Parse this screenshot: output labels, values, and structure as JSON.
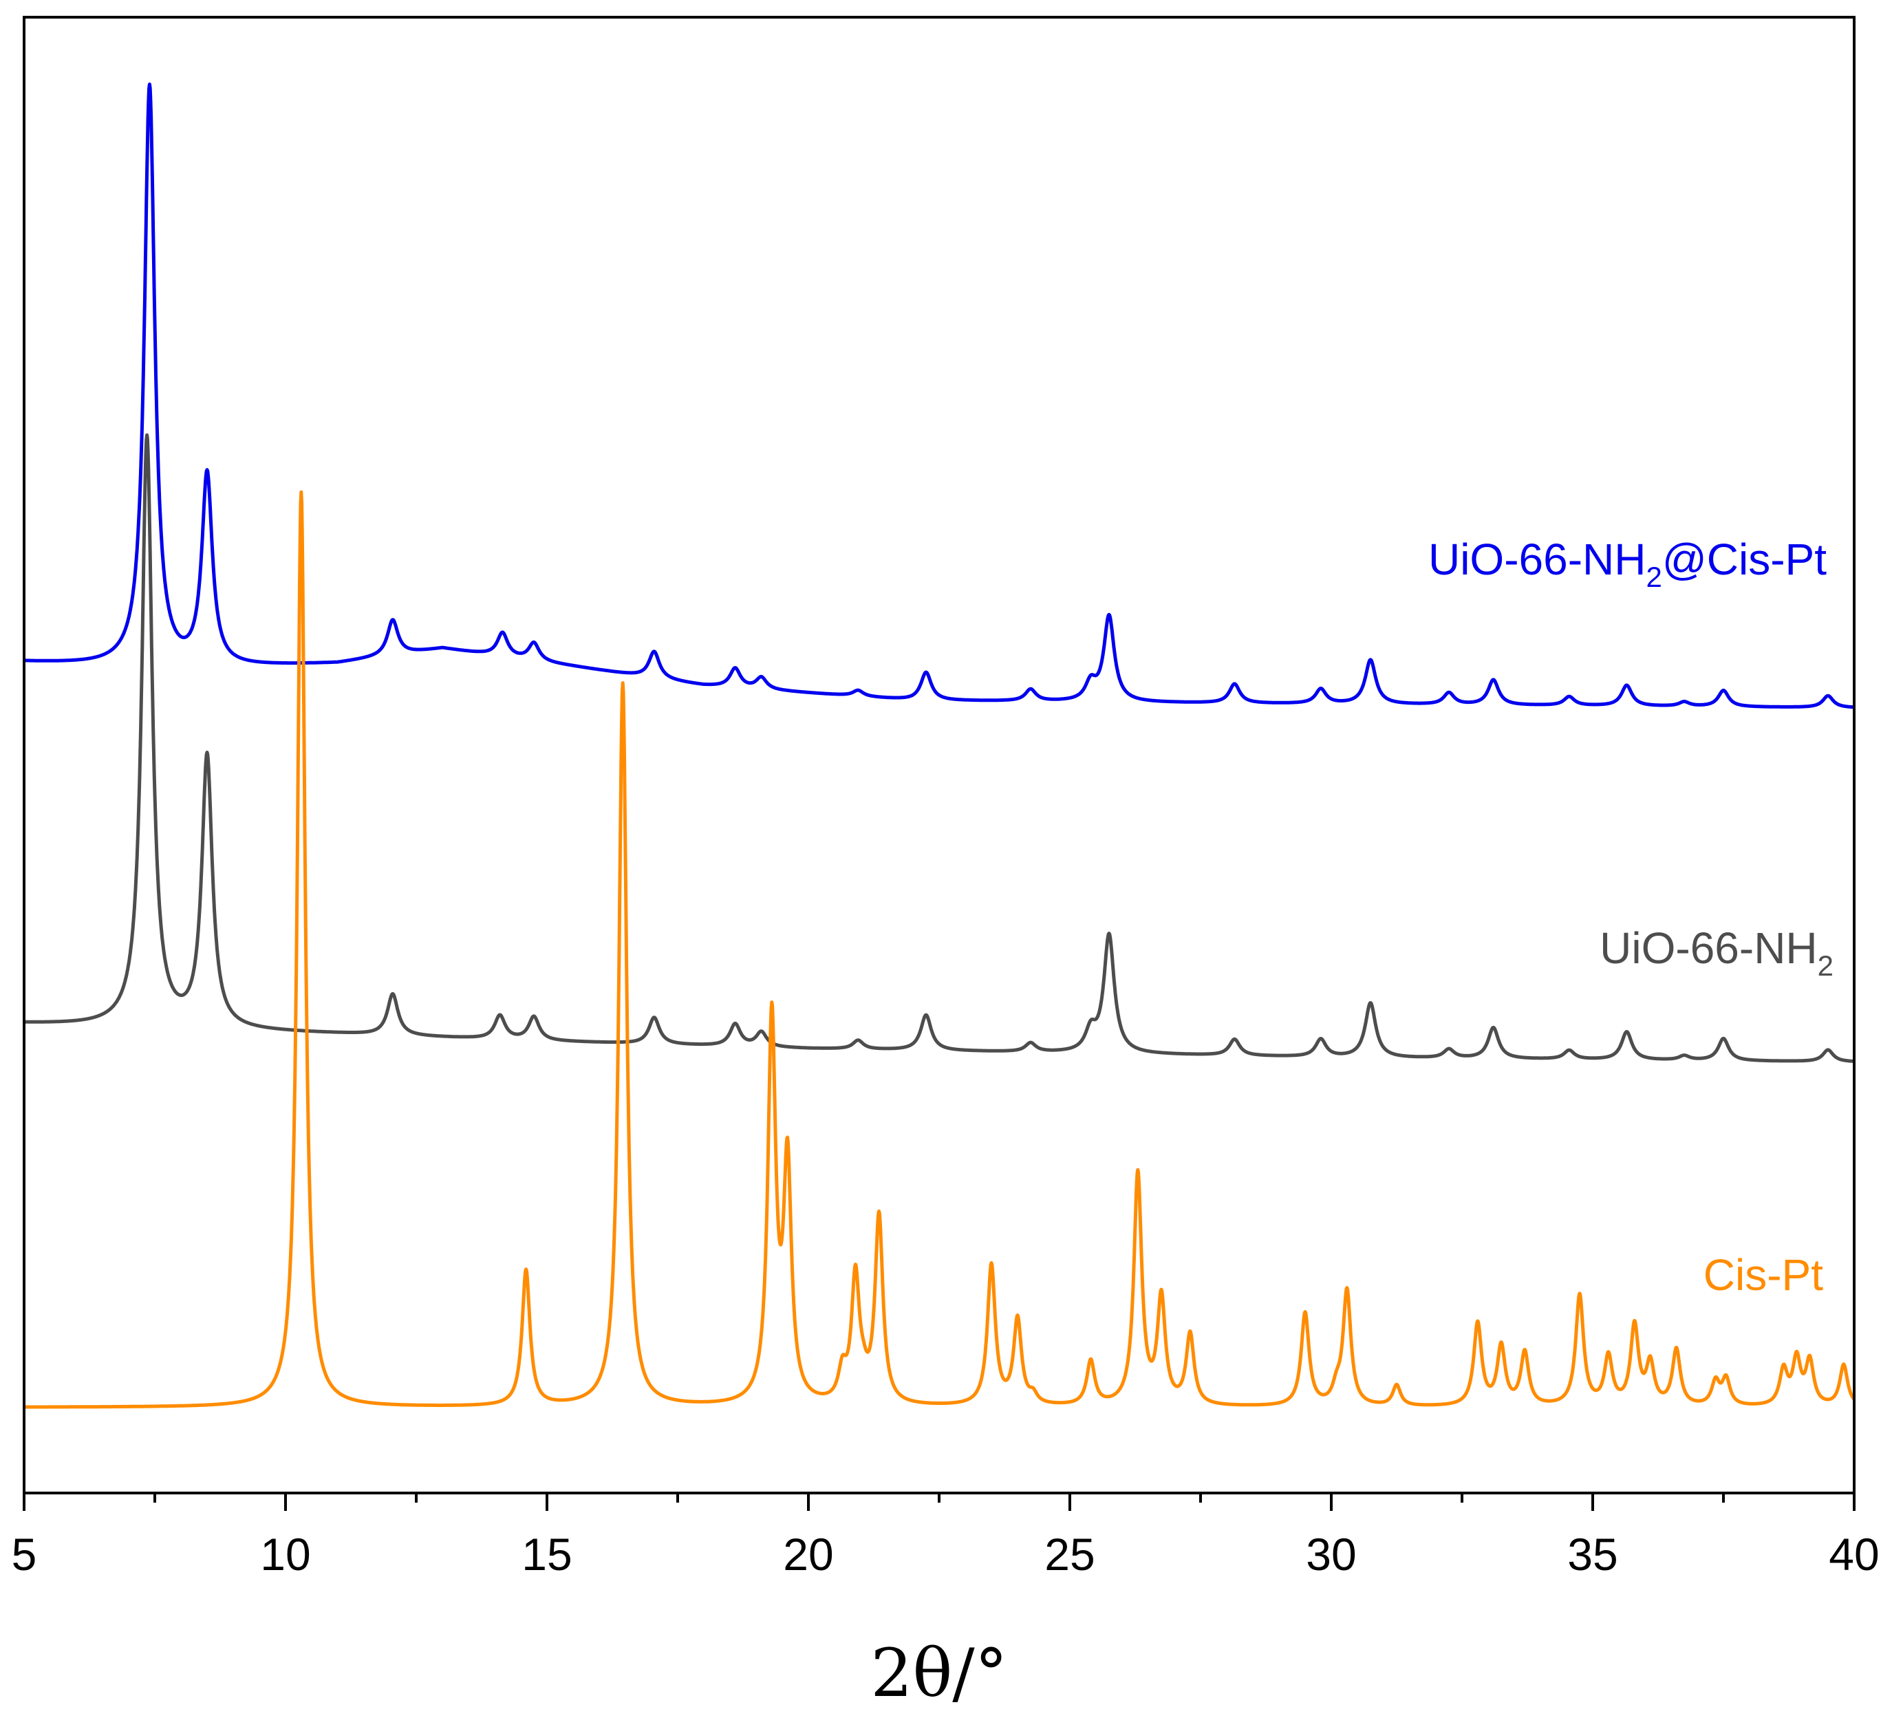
{
  "chart_data": {
    "type": "line",
    "title": "",
    "xlabel": "2θ/°",
    "ylabel": "",
    "xlim": [
      5,
      40
    ],
    "ylim": [
      0,
      1.0
    ],
    "x_ticks": [
      5,
      10,
      15,
      20,
      25,
      30,
      35,
      40
    ],
    "x_minor_step": 2.5,
    "y_ticks_visible": false,
    "grid": false,
    "legend": "inline labels beside each trace",
    "series": [
      {
        "label_main": "UiO-66-NH",
        "label_sub": "2",
        "label_tail": "@Cis-Pt",
        "color": "#0000ee",
        "baseline": [
          [
            5,
            0.563
          ],
          [
            8,
            0.558
          ],
          [
            11,
            0.562
          ],
          [
            13,
            0.572
          ],
          [
            15.5,
            0.56
          ],
          [
            18,
            0.547
          ],
          [
            22,
            0.537
          ],
          [
            28,
            0.535
          ],
          [
            40,
            0.532
          ]
        ],
        "width_scale": 0.12,
        "peaks": [
          [
            7.4,
            0.394
          ],
          [
            8.5,
            0.13
          ],
          [
            12.05,
            0.024
          ],
          [
            14.15,
            0.016
          ],
          [
            14.75,
            0.012
          ],
          [
            17.05,
            0.018
          ],
          [
            18.6,
            0.013
          ],
          [
            19.1,
            0.008
          ],
          [
            20.95,
            0.004
          ],
          [
            22.25,
            0.019
          ],
          [
            24.25,
            0.008
          ],
          [
            25.4,
            0.012
          ],
          [
            25.75,
            0.058
          ],
          [
            28.15,
            0.013
          ],
          [
            29.8,
            0.01
          ],
          [
            30.75,
            0.03
          ],
          [
            32.25,
            0.008
          ],
          [
            33.1,
            0.017
          ],
          [
            34.55,
            0.006
          ],
          [
            35.65,
            0.014
          ],
          [
            36.75,
            0.003
          ],
          [
            37.5,
            0.011
          ],
          [
            39.5,
            0.008
          ]
        ]
      },
      {
        "label_main": "UiO-66-NH",
        "label_sub": "2",
        "label_tail": "",
        "color": "#4d4d4d",
        "baseline": [
          [
            5,
            0.318
          ],
          [
            8,
            0.314
          ],
          [
            11,
            0.311
          ],
          [
            15,
            0.306
          ],
          [
            20,
            0.301
          ],
          [
            25,
            0.298
          ],
          [
            30,
            0.295
          ],
          [
            40,
            0.292
          ]
        ],
        "width_scale": 0.12,
        "peaks": [
          [
            7.35,
            0.4
          ],
          [
            8.5,
            0.184
          ],
          [
            12.05,
            0.028
          ],
          [
            14.1,
            0.016
          ],
          [
            14.75,
            0.016
          ],
          [
            17.05,
            0.018
          ],
          [
            18.6,
            0.015
          ],
          [
            19.1,
            0.01
          ],
          [
            20.95,
            0.006
          ],
          [
            22.25,
            0.024
          ],
          [
            24.25,
            0.006
          ],
          [
            25.4,
            0.014
          ],
          [
            25.75,
            0.08
          ],
          [
            28.15,
            0.011
          ],
          [
            29.8,
            0.012
          ],
          [
            30.75,
            0.037
          ],
          [
            32.25,
            0.006
          ],
          [
            33.1,
            0.021
          ],
          [
            34.55,
            0.006
          ],
          [
            35.65,
            0.019
          ],
          [
            36.75,
            0.003
          ],
          [
            37.5,
            0.015
          ],
          [
            39.5,
            0.008
          ]
        ]
      },
      {
        "label_main": "Cis-Pt",
        "label_sub": "",
        "label_tail": "",
        "color": "#ff8c00",
        "baseline": [
          [
            5,
            0.058
          ],
          [
            40,
            0.058
          ]
        ],
        "width_scale": 0.09,
        "peaks": [
          [
            10.3,
            0.62
          ],
          [
            14.6,
            0.092
          ],
          [
            16.45,
            0.49
          ],
          [
            19.3,
            0.26
          ],
          [
            19.6,
            0.16
          ],
          [
            20.65,
            0.02
          ],
          [
            20.9,
            0.085
          ],
          [
            21.05,
            0.01
          ],
          [
            21.35,
            0.127
          ],
          [
            23.5,
            0.095
          ],
          [
            24.0,
            0.058
          ],
          [
            24.3,
            0.006
          ],
          [
            25.4,
            0.03
          ],
          [
            26.3,
            0.157
          ],
          [
            26.75,
            0.072
          ],
          [
            27.3,
            0.048
          ],
          [
            29.5,
            0.063
          ],
          [
            30.1,
            0.01
          ],
          [
            30.3,
            0.078
          ],
          [
            31.25,
            0.014
          ],
          [
            32.8,
            0.056
          ],
          [
            33.25,
            0.04
          ],
          [
            33.7,
            0.036
          ],
          [
            34.75,
            0.075
          ],
          [
            35.3,
            0.033
          ],
          [
            35.8,
            0.054
          ],
          [
            36.1,
            0.028
          ],
          [
            36.6,
            0.038
          ],
          [
            37.35,
            0.016
          ],
          [
            37.55,
            0.018
          ],
          [
            38.65,
            0.024
          ],
          [
            38.9,
            0.031
          ],
          [
            39.15,
            0.03
          ],
          [
            39.8,
            0.028
          ]
        ]
      }
    ]
  }
}
